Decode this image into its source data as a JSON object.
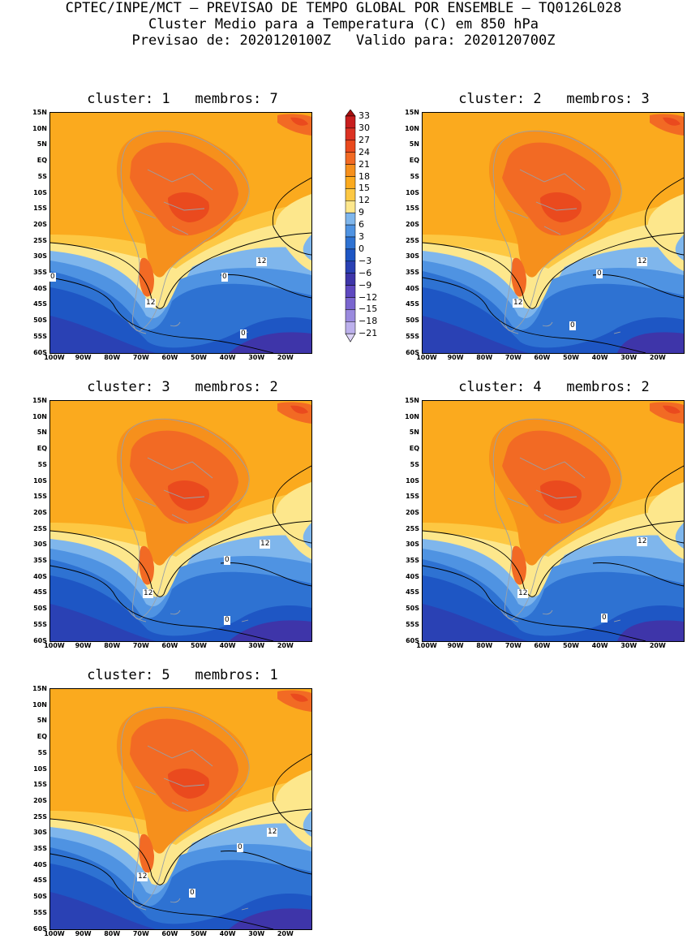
{
  "header": {
    "line1": "CPTEC/INPE/MCT – PREVISAO DE TEMPO GLOBAL POR ENSEMBLE – TQ0126L028",
    "line2": "Cluster Medio para a Temperatura (C) em 850 hPa",
    "line3": "Previsao de: 2020120100Z   Valido para: 2020120700Z"
  },
  "map_axes": {
    "lat_labels": [
      "15N",
      "10N",
      "5N",
      "EQ",
      "5S",
      "10S",
      "15S",
      "20S",
      "25S",
      "30S",
      "35S",
      "40S",
      "45S",
      "50S",
      "55S",
      "60S"
    ],
    "lon_labels": [
      "100W",
      "90W",
      "80W",
      "70W",
      "60W",
      "50W",
      "40W",
      "30W",
      "20W"
    ]
  },
  "panels": [
    {
      "title": "cluster: 1   membros: 7",
      "contour_labels": [
        "12",
        "12",
        "0",
        "0",
        "0"
      ]
    },
    {
      "title": "cluster: 2   membros: 3",
      "contour_labels": [
        "12",
        "12",
        "0",
        "0"
      ]
    },
    {
      "title": "cluster: 3   membros: 2",
      "contour_labels": [
        "12",
        "12",
        "0",
        "0"
      ]
    },
    {
      "title": "cluster: 4   membros: 2",
      "contour_labels": [
        "12",
        "12",
        "0"
      ]
    },
    {
      "title": "cluster: 5   membros: 1",
      "contour_labels": [
        "12",
        "12",
        "0",
        "0"
      ]
    }
  ],
  "colorbar": {
    "labels": [
      "33",
      "30",
      "27",
      "24",
      "21",
      "18",
      "15",
      "12",
      "9",
      "6",
      "3",
      "0",
      "−3",
      "−6",
      "−9",
      "−12",
      "−15",
      "−18",
      "−21"
    ],
    "colors": [
      "#a50f0f",
      "#c81e1e",
      "#dc3223",
      "#ea4a1e",
      "#f26a24",
      "#f6901c",
      "#fbaa1e",
      "#fdc843",
      "#fde78c",
      "#7fb6ec",
      "#4f93e2",
      "#2e72d2",
      "#1e56c4",
      "#2a41b4",
      "#3e35a9",
      "#5e48c0",
      "#7a66cf",
      "#9a8ade",
      "#bcb0ec",
      "#dcd4f6"
    ]
  }
}
